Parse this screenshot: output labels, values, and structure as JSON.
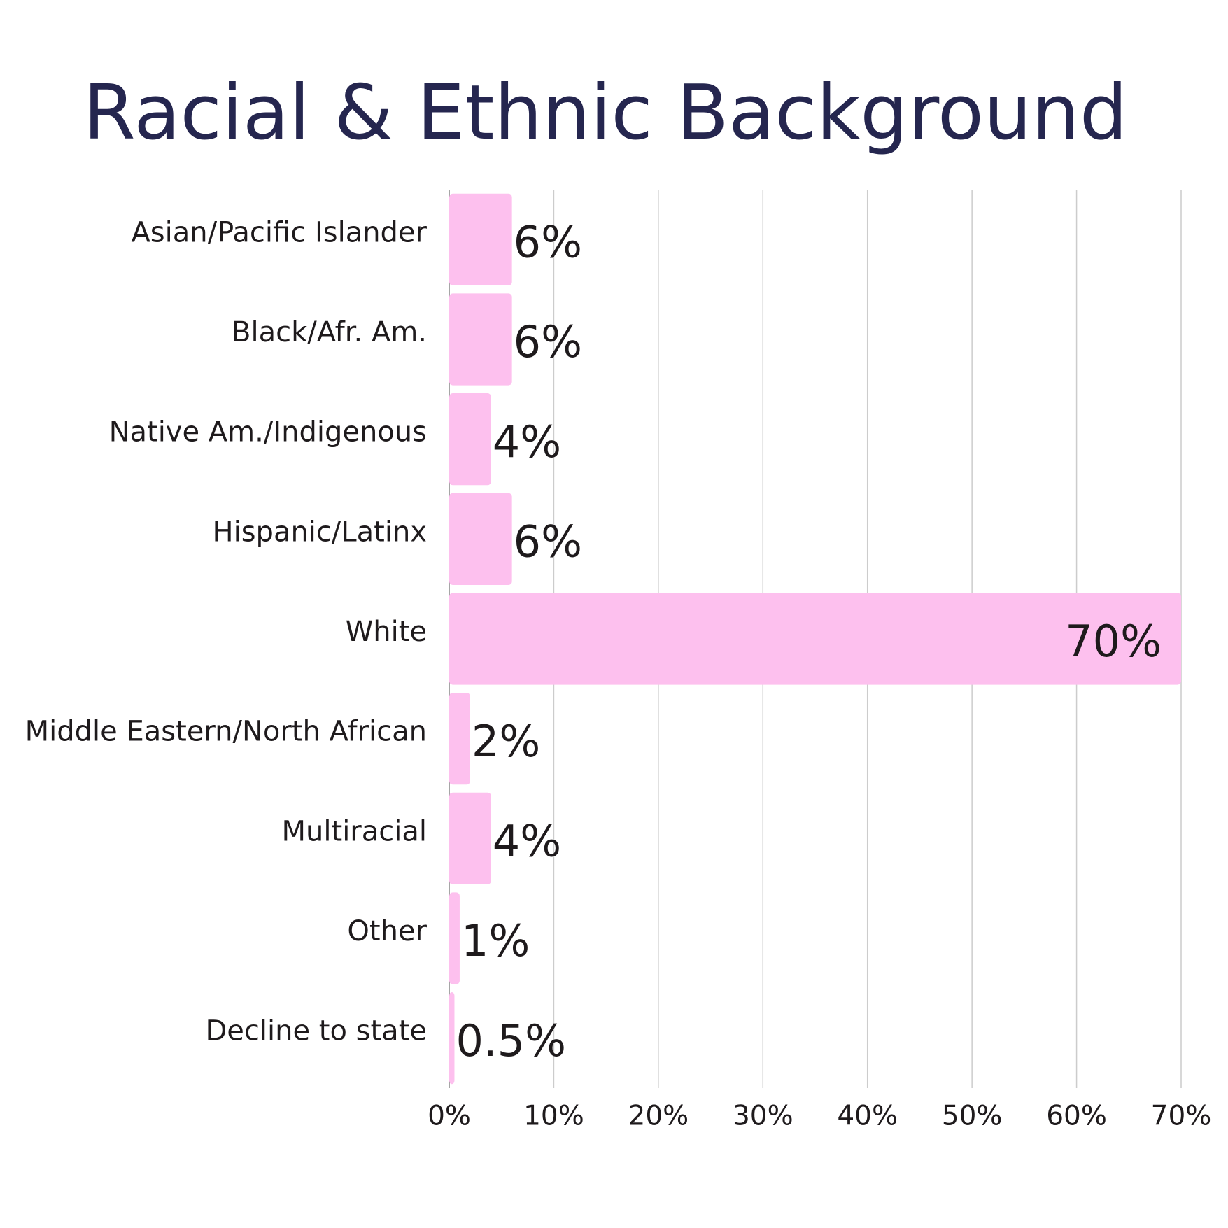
{
  "chart_data": {
    "type": "bar",
    "orientation": "horizontal",
    "title": "Racial & Ethnic Background",
    "categories": [
      "Asian/Pacific Islander",
      "Black/Afr. Am.",
      "Native Am./Indigenous",
      "Hispanic/Latinx",
      "White",
      "Middle Eastern/North African",
      "Multiracial",
      "Other",
      "Decline to state"
    ],
    "values": [
      6,
      6,
      4,
      6,
      70,
      2,
      4,
      1,
      0.5
    ],
    "value_labels": [
      "6%",
      "6%",
      "4%",
      "6%",
      "70%",
      "2%",
      "4%",
      "1%",
      "0.5%"
    ],
    "color": "#fdc0ee",
    "xlim": [
      0,
      70
    ],
    "xticks": [
      {
        "value": 0,
        "label": "0%"
      },
      {
        "value": 10,
        "label": "10%"
      },
      {
        "value": 20,
        "label": "20%"
      },
      {
        "value": 30,
        "label": "30%"
      },
      {
        "value": 40,
        "label": "40%"
      },
      {
        "value": 50,
        "label": "50%"
      },
      {
        "value": 60,
        "label": "60%"
      },
      {
        "value": 70,
        "label": "70%"
      }
    ],
    "grid": true
  }
}
